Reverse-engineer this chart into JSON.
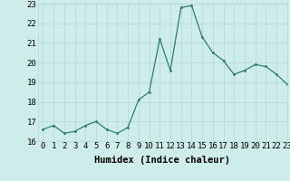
{
  "x": [
    0,
    1,
    2,
    3,
    4,
    5,
    6,
    7,
    8,
    9,
    10,
    11,
    12,
    13,
    14,
    15,
    16,
    17,
    18,
    19,
    20,
    21,
    22,
    23
  ],
  "y": [
    16.6,
    16.8,
    16.4,
    16.5,
    16.8,
    17.0,
    16.6,
    16.4,
    16.7,
    18.1,
    18.5,
    21.2,
    19.6,
    22.8,
    22.9,
    21.3,
    20.5,
    20.1,
    19.4,
    19.6,
    19.9,
    19.8,
    19.4,
    18.9
  ],
  "xlabel": "Humidex (Indice chaleur)",
  "line_color": "#2d7d6e",
  "marker_color": "#2d7d6e",
  "bg_color": "#ceecea",
  "grid_color": "#b0d8d4",
  "ylim": [
    16,
    23
  ],
  "xlim": [
    -0.5,
    23
  ],
  "yticks": [
    16,
    17,
    18,
    19,
    20,
    21,
    22,
    23
  ],
  "xticks": [
    0,
    1,
    2,
    3,
    4,
    5,
    6,
    7,
    8,
    9,
    10,
    11,
    12,
    13,
    14,
    15,
    16,
    17,
    18,
    19,
    20,
    21,
    22,
    23
  ],
  "tick_fontsize": 6.5,
  "xlabel_fontsize": 7.5
}
